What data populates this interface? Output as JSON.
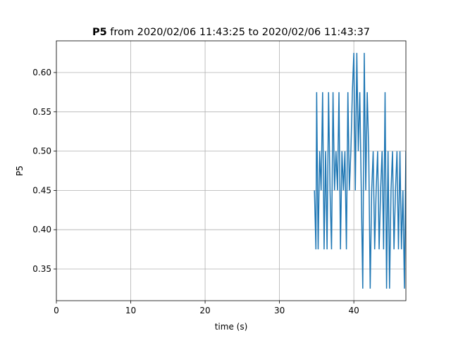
{
  "chart_data": {
    "type": "line",
    "title_bold": "P5",
    "title": "from 2020/02/06 11:43:25 to 2020/02/06 11:43:37",
    "xlabel": "time (s)",
    "ylabel": "P5",
    "x": [
      34.7,
      34.9,
      35.0,
      35.2,
      35.4,
      35.6,
      35.8,
      36.0,
      36.2,
      36.4,
      36.6,
      36.8,
      37.0,
      37.2,
      37.4,
      37.6,
      37.8,
      38.0,
      38.2,
      38.4,
      38.6,
      38.8,
      39.0,
      39.2,
      39.4,
      39.6,
      39.8,
      40.0,
      40.2,
      40.4,
      40.6,
      40.8,
      41.0,
      41.2,
      41.4,
      41.6,
      41.8,
      42.0,
      42.2,
      42.4,
      42.6,
      42.8,
      43.0,
      43.2,
      43.4,
      43.6,
      43.8,
      44.0,
      44.2,
      44.4,
      44.6,
      44.8,
      45.0,
      45.2,
      45.4,
      45.6,
      45.8,
      46.0,
      46.2,
      46.4,
      46.6,
      46.8,
      47.0
    ],
    "series": [
      {
        "name": "P5",
        "color": "#1f77b4",
        "values": [
          0.45,
          0.375,
          0.575,
          0.375,
          0.5,
          0.45,
          0.575,
          0.375,
          0.5,
          0.375,
          0.575,
          0.45,
          0.375,
          0.575,
          0.45,
          0.5,
          0.45,
          0.575,
          0.375,
          0.5,
          0.45,
          0.5,
          0.375,
          0.575,
          0.45,
          0.5,
          0.575,
          0.625,
          0.45,
          0.625,
          0.5,
          0.575,
          0.45,
          0.325,
          0.625,
          0.45,
          0.575,
          0.5,
          0.325,
          0.45,
          0.5,
          0.375,
          0.45,
          0.5,
          0.375,
          0.45,
          0.5,
          0.375,
          0.575,
          0.325,
          0.5,
          0.325,
          0.45,
          0.5,
          0.375,
          0.45,
          0.5,
          0.375,
          0.5,
          0.375,
          0.45,
          0.325,
          0.5
        ]
      }
    ],
    "xlim": [
      0,
      47
    ],
    "ylim": [
      0.3097,
      0.6403
    ],
    "xticks": [
      0,
      10,
      20,
      30,
      40
    ],
    "yticks": [
      0.35,
      {
        "value": 0.4,
        "label": "0.40"
      },
      0.45,
      {
        "value": 0.5,
        "label": "0.50"
      },
      0.55,
      {
        "value": 0.6,
        "label": "0.60"
      }
    ],
    "grid": true
  }
}
